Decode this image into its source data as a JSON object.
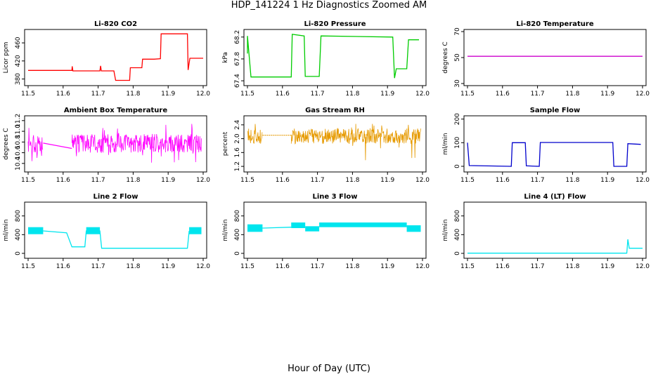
{
  "figure": {
    "title": "HDP_141224  1 Hz Diagnostics Zoomed AM",
    "xlabel": "Hour of Day (UTC)"
  },
  "chart_data": [
    {
      "type": "line",
      "title": "Li-820 CO2",
      "ylabel": "Licor ppm",
      "color": "#ff0000",
      "xlim": [
        11.5,
        12.0
      ],
      "ylim": [
        370,
        485
      ],
      "xticks": [
        "11.5",
        "11.6",
        "11.7",
        "11.8",
        "11.9",
        "12.0"
      ],
      "yticks": [
        380,
        420,
        460
      ],
      "segments": [
        [
          [
            11.5,
            399
          ],
          [
            11.625,
            399
          ],
          [
            11.626,
            408
          ],
          [
            11.628,
            398
          ],
          [
            11.705,
            398
          ],
          [
            11.707,
            409
          ],
          [
            11.709,
            398
          ],
          [
            11.745,
            398
          ],
          [
            11.75,
            377
          ],
          [
            11.79,
            377
          ],
          [
            11.792,
            405
          ],
          [
            11.825,
            405
          ],
          [
            11.827,
            424
          ],
          [
            11.86,
            424
          ],
          [
            11.878,
            425
          ],
          [
            11.88,
            480
          ],
          [
            11.955,
            480
          ],
          [
            11.957,
            400
          ],
          [
            11.962,
            426
          ],
          [
            12.0,
            426
          ]
        ]
      ]
    },
    {
      "type": "line",
      "title": "Li-820 Pressure",
      "ylabel": "kPa",
      "color": "#00cc00",
      "xlim": [
        11.5,
        12.0
      ],
      "ylim": [
        67.35,
        68.3
      ],
      "xticks": [
        "11.5",
        "11.6",
        "11.7",
        "11.8",
        "11.9",
        "12.0"
      ],
      "yticks": [
        67.4,
        67.8,
        68.2
      ],
      "segments": [
        [
          [
            11.5,
            67.9
          ],
          [
            11.5,
            68.22
          ],
          [
            11.51,
            67.47
          ],
          [
            11.625,
            67.47
          ],
          [
            11.628,
            68.25
          ],
          [
            11.662,
            68.22
          ],
          [
            11.665,
            67.48
          ],
          [
            11.705,
            67.48
          ],
          [
            11.71,
            68.22
          ],
          [
            11.915,
            68.2
          ],
          [
            11.92,
            67.45
          ],
          [
            11.925,
            67.62
          ],
          [
            11.955,
            67.62
          ],
          [
            11.96,
            68.15
          ],
          [
            11.99,
            68.15
          ]
        ]
      ]
    },
    {
      "type": "line",
      "title": "Li-820 Temperature",
      "ylabel": "degrees C",
      "color": "#cc00cc",
      "xlim": [
        11.5,
        12.0
      ],
      "ylim": [
        30,
        70
      ],
      "xticks": [
        "11.5",
        "11.6",
        "11.7",
        "11.8",
        "11.9",
        "12.0"
      ],
      "yticks": [
        30,
        50,
        70
      ],
      "segments": [
        [
          [
            11.5,
            51
          ],
          [
            12.0,
            51
          ]
        ]
      ]
    },
    {
      "type": "line",
      "title": "Ambient Box Temperature",
      "ylabel": "degrees C",
      "color": "#ff00ff",
      "noisy": true,
      "xlim": [
        11.5,
        12.0
      ],
      "ylim": [
        10.28,
        11.25
      ],
      "xticks": [
        "11.5",
        "11.6",
        "11.7",
        "11.8",
        "11.9",
        "12.0"
      ],
      "yticks": [
        10.4,
        10.6,
        10.8,
        11.0,
        11.2
      ],
      "band_low": 10.6,
      "band_high": 10.95,
      "spike_low": 10.35,
      "spike_high": 11.15,
      "bands": [
        [
          11.5,
          11.543
        ],
        [
          11.625,
          11.995
        ]
      ],
      "connector": [
        [
          11.543,
          10.78
        ],
        [
          11.625,
          10.68
        ]
      ]
    },
    {
      "type": "line",
      "title": "Gas Stream RH",
      "ylabel": "percent",
      "color": "#e69a00",
      "noisy": true,
      "xlim": [
        11.5,
        12.0
      ],
      "ylim": [
        1.1,
        2.6
      ],
      "xticks": [
        "11.5",
        "11.6",
        "11.7",
        "11.8",
        "11.9",
        "12.0"
      ],
      "yticks": [
        1.2,
        1.6,
        2.0,
        2.4
      ],
      "band_low": 1.85,
      "band_high": 2.3,
      "spike_low": 1.15,
      "spike_high": 2.5,
      "bands": [
        [
          11.5,
          11.543
        ],
        [
          11.625,
          11.995
        ]
      ],
      "connector": [
        [
          11.543,
          2.1
        ],
        [
          11.625,
          2.1
        ]
      ]
    },
    {
      "type": "line",
      "title": "Sample Flow",
      "ylabel": "ml/min",
      "color": "#0000cc",
      "xlim": [
        11.5,
        12.0
      ],
      "ylim": [
        -15,
        205
      ],
      "xticks": [
        "11.5",
        "11.6",
        "11.7",
        "11.8",
        "11.9",
        "12.0"
      ],
      "yticks": [
        0,
        100,
        200
      ],
      "segments": [
        [
          [
            11.5,
            100
          ],
          [
            11.505,
            3
          ],
          [
            11.625,
            0
          ],
          [
            11.628,
            100
          ],
          [
            11.665,
            100
          ],
          [
            11.668,
            2
          ],
          [
            11.705,
            0
          ],
          [
            11.708,
            101
          ],
          [
            11.915,
            101
          ],
          [
            11.918,
            0
          ],
          [
            11.955,
            0
          ],
          [
            11.958,
            96
          ],
          [
            11.995,
            93
          ]
        ]
      ]
    },
    {
      "type": "line",
      "title": "Line 2 Flow",
      "ylabel": "ml/min",
      "color": "#00e5ee",
      "xlim": [
        11.5,
        12.0
      ],
      "ylim": [
        -60,
        1050
      ],
      "xticks": [
        "11.5",
        "11.6",
        "11.7",
        "11.8",
        "11.9",
        "12.0"
      ],
      "yticks": [
        0,
        400,
        800
      ],
      "segments": [
        [
          [
            11.543,
            480
          ],
          [
            11.61,
            440
          ],
          [
            11.625,
            140
          ],
          [
            11.662,
            140
          ],
          [
            11.666,
            480
          ],
          [
            11.705,
            480
          ],
          [
            11.71,
            110
          ],
          [
            11.955,
            110
          ],
          [
            11.96,
            480
          ]
        ]
      ],
      "thick_bands": [
        [
          11.5,
          11.543,
          410,
          560
        ],
        [
          11.666,
          11.705,
          410,
          560
        ],
        [
          11.96,
          11.995,
          410,
          560
        ]
      ]
    },
    {
      "type": "line",
      "title": "Line 3 Flow",
      "ylabel": "ml/min",
      "color": "#00e5ee",
      "xlim": [
        11.5,
        12.0
      ],
      "ylim": [
        -60,
        1050
      ],
      "xticks": [
        "11.5",
        "11.6",
        "11.7",
        "11.8",
        "11.9",
        "12.0"
      ],
      "yticks": [
        0,
        400,
        800
      ],
      "segments": [
        [
          [
            11.543,
            540
          ],
          [
            11.625,
            560
          ]
        ]
      ],
      "thick_bands": [
        [
          11.5,
          11.543,
          460,
          620
        ],
        [
          11.625,
          11.665,
          540,
          660
        ],
        [
          11.665,
          11.705,
          470,
          580
        ],
        [
          11.705,
          11.955,
          560,
          660
        ],
        [
          11.955,
          11.995,
          460,
          600
        ]
      ]
    },
    {
      "type": "line",
      "title": "Line 4 (LT) Flow",
      "ylabel": "ml/min",
      "color": "#00e5ee",
      "xlim": [
        11.5,
        12.0
      ],
      "ylim": [
        -60,
        1050
      ],
      "xticks": [
        "11.5",
        "11.6",
        "11.7",
        "11.8",
        "11.9",
        "12.0"
      ],
      "yticks": [
        0,
        400,
        800
      ],
      "segments": [
        [
          [
            11.5,
            5
          ],
          [
            11.955,
            5
          ],
          [
            11.958,
            300
          ],
          [
            11.962,
            110
          ],
          [
            12.0,
            110
          ]
        ]
      ]
    }
  ]
}
